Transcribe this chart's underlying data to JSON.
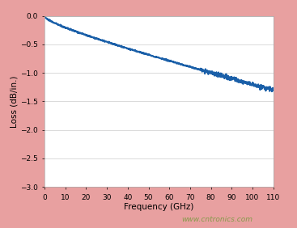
{
  "background_color": "#e8a0a0",
  "plot_bg_color": "#ffffff",
  "line_color": "#1a5fa8",
  "line_width": 1.4,
  "xlim": [
    0,
    110
  ],
  "ylim": [
    -3.0,
    0.0
  ],
  "xticks": [
    0,
    10,
    20,
    30,
    40,
    50,
    60,
    70,
    80,
    90,
    100,
    110
  ],
  "yticks": [
    0.0,
    -0.5,
    -1.0,
    -1.5,
    -2.0,
    -2.5,
    -3.0
  ],
  "xlabel": "Frequency (GHz)",
  "ylabel": "Loss (dB/in.)",
  "xlabel_fontsize": 7.5,
  "ylabel_fontsize": 7.5,
  "tick_fontsize": 6.5,
  "watermark": "www.cntronics.com",
  "watermark_color": "#7a9a40",
  "watermark_fontsize": 6.5,
  "grid_color": "#cccccc",
  "end_loss": -1.3
}
